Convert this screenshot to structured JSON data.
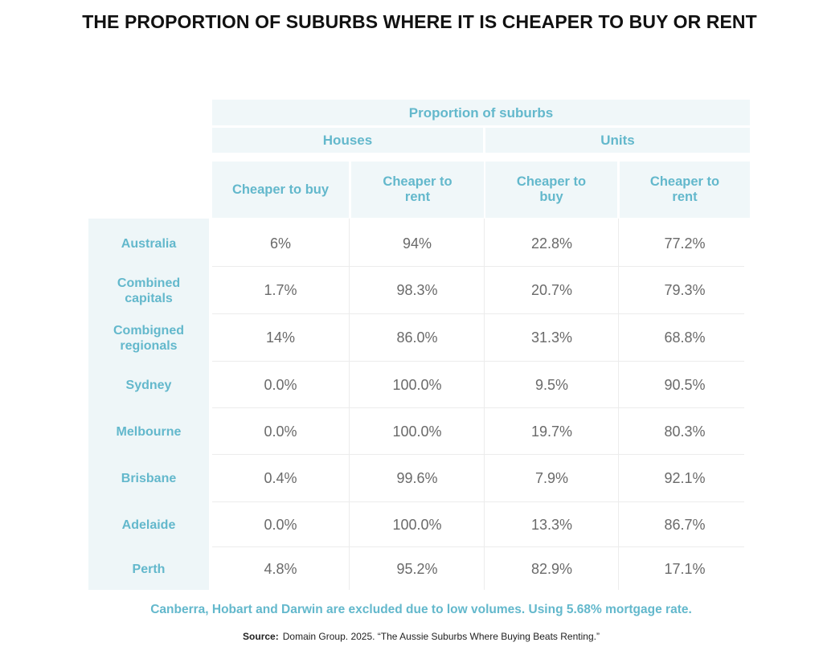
{
  "title": "THE PROPORTION OF SUBURBS WHERE IT IS CHEAPER TO BUY OR RENT",
  "chart_data": {
    "type": "table",
    "header_group": "Proportion of suburbs",
    "groups": [
      "Houses",
      "Units"
    ],
    "columns": [
      "Cheaper to buy",
      "Cheaper to rent",
      "Cheaper to buy",
      "Cheaper to rent"
    ],
    "rows": [
      {
        "label": "Australia",
        "values": [
          "6%",
          "94%",
          "22.8%",
          "77.2%"
        ]
      },
      {
        "label": "Combined capitals",
        "values": [
          "1.7%",
          "98.3%",
          "20.7%",
          "79.3%"
        ]
      },
      {
        "label": "Combigned regionals",
        "values": [
          "14%",
          "86.0%",
          "31.3%",
          "68.8%"
        ]
      },
      {
        "label": "Sydney",
        "values": [
          "0.0%",
          "100.0%",
          "9.5%",
          "90.5%"
        ]
      },
      {
        "label": "Melbourne",
        "values": [
          "0.0%",
          "100.0%",
          "19.7%",
          "80.3%"
        ]
      },
      {
        "label": "Brisbane",
        "values": [
          "0.4%",
          "99.6%",
          "7.9%",
          "92.1%"
        ]
      },
      {
        "label": "Adelaide",
        "values": [
          "0.0%",
          "100.0%",
          "13.3%",
          "86.7%"
        ]
      },
      {
        "label": "Perth",
        "values": [
          "4.8%",
          "95.2%",
          "82.9%",
          "17.1%"
        ]
      }
    ]
  },
  "note": "Canberra, Hobart and Darwin are excluded due to low volumes. Using 5.68% mortgage rate.",
  "source": {
    "label": "Source:",
    "text": "Domain Group. 2025. “The Aussie Suburbs Where Buying Beats Renting.”"
  }
}
